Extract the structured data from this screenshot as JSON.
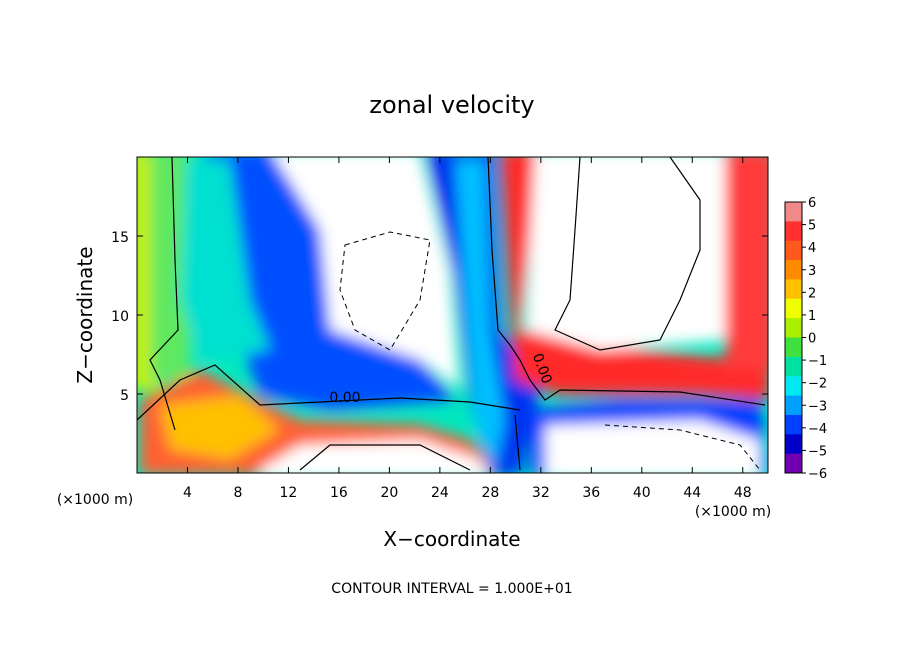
{
  "chart_data": {
    "type": "heatmap",
    "title": "zonal velocity",
    "xlabel": "X−coordinate",
    "ylabel": "Z−coordinate",
    "x_unit_label": "(×1000 m)",
    "y_unit_label": "(×1000 m)",
    "footer": "CONTOUR INTERVAL = 1.000E+01",
    "xlim": [
      0,
      50
    ],
    "ylim": [
      0,
      20
    ],
    "x_ticks": [
      "4",
      "8",
      "12",
      "16",
      "20",
      "24",
      "28",
      "32",
      "36",
      "40",
      "44",
      "48"
    ],
    "y_ticks": [
      "5",
      "10",
      "15"
    ],
    "colorbar": {
      "range": [
        -6,
        6
      ],
      "tick_labels": [
        "6",
        "5",
        "4",
        "3",
        "2",
        "1",
        "0",
        "−1",
        "−2",
        "−3",
        "−4",
        "−5",
        "−6"
      ],
      "colors": [
        "#f08a8a",
        "#ff3030",
        "#ff5a1e",
        "#ff8c00",
        "#ffc000",
        "#f0ff00",
        "#a8f000",
        "#40e040",
        "#00e0a0",
        "#00e8f0",
        "#00a0ff",
        "#0040ff",
        "#0000c8",
        "#7000b0"
      ]
    },
    "contour_labels": [
      "0.00",
      "0.00"
    ],
    "note": "2D field of zonal velocity; colour fills out of range (|u| > 6) appear white; solid contours = zero line, dashed = negative region."
  }
}
